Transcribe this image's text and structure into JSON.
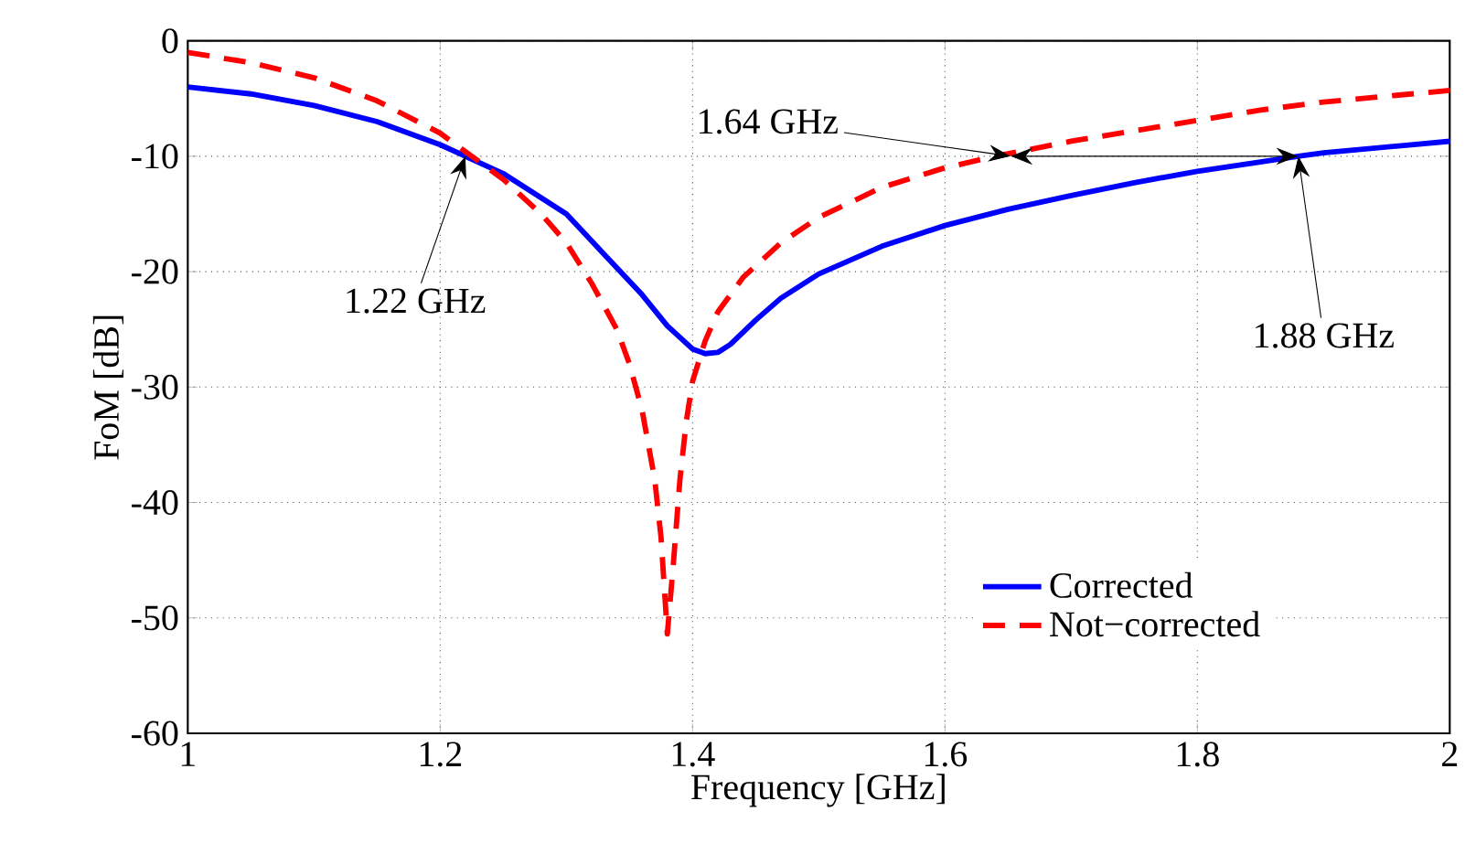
{
  "chart_data": {
    "type": "line",
    "xlabel": "Frequency [GHz]",
    "ylabel": "FoM [dB]",
    "xlim": [
      1,
      2
    ],
    "ylim": [
      -60,
      0
    ],
    "xticks": [
      1,
      1.2,
      1.4,
      1.6,
      1.8,
      2
    ],
    "yticks": [
      -60,
      -50,
      -40,
      -30,
      -20,
      -10,
      0
    ],
    "grid": true,
    "legend": "bottom right",
    "series": [
      {
        "name": "Corrected",
        "color": "#0000ff",
        "line_style": "solid",
        "x": [
          1.0,
          1.05,
          1.1,
          1.15,
          1.2,
          1.25,
          1.3,
          1.33,
          1.36,
          1.38,
          1.4,
          1.41,
          1.42,
          1.43,
          1.45,
          1.47,
          1.5,
          1.55,
          1.6,
          1.65,
          1.7,
          1.75,
          1.8,
          1.85,
          1.88,
          1.9,
          1.95,
          2.0
        ],
        "values": [
          -4,
          -4.6,
          -5.6,
          -7,
          -9,
          -11.5,
          -15,
          -18.5,
          -22,
          -24.7,
          -26.7,
          -27.1,
          -27,
          -26.3,
          -24.2,
          -22.3,
          -20.2,
          -17.8,
          -16,
          -14.6,
          -13.4,
          -12.3,
          -11.3,
          -10.5,
          -10,
          -9.7,
          -9.2,
          -8.7
        ]
      },
      {
        "name": "Not−corrected",
        "color": "#ff0000",
        "line_style": "dashed",
        "x": [
          1.0,
          1.05,
          1.1,
          1.15,
          1.2,
          1.22,
          1.25,
          1.28,
          1.3,
          1.32,
          1.34,
          1.35,
          1.36,
          1.37,
          1.375,
          1.38,
          1.385,
          1.39,
          1.395,
          1.4,
          1.41,
          1.42,
          1.44,
          1.47,
          1.5,
          1.55,
          1.6,
          1.64,
          1.7,
          1.75,
          1.8,
          1.85,
          1.9,
          1.95,
          2.0
        ],
        "values": [
          -1,
          -1.9,
          -3.2,
          -5.2,
          -8,
          -9.6,
          -12,
          -15,
          -17.5,
          -21,
          -25,
          -28,
          -32,
          -38,
          -43,
          -51.4,
          -45,
          -38,
          -33,
          -29.5,
          -26,
          -23.5,
          -20.5,
          -17.5,
          -15.3,
          -12.7,
          -11,
          -10,
          -8.7,
          -7.8,
          -6.9,
          -6,
          -5.3,
          -4.8,
          -4.3
        ]
      }
    ],
    "annotations": [
      {
        "text": "1.22 GHz",
        "x": 1.22,
        "y": -10
      },
      {
        "text": "1.64 GHz",
        "x": 1.64,
        "y": -10
      },
      {
        "text": "1.88 GHz",
        "x": 1.88,
        "y": -10
      }
    ]
  }
}
